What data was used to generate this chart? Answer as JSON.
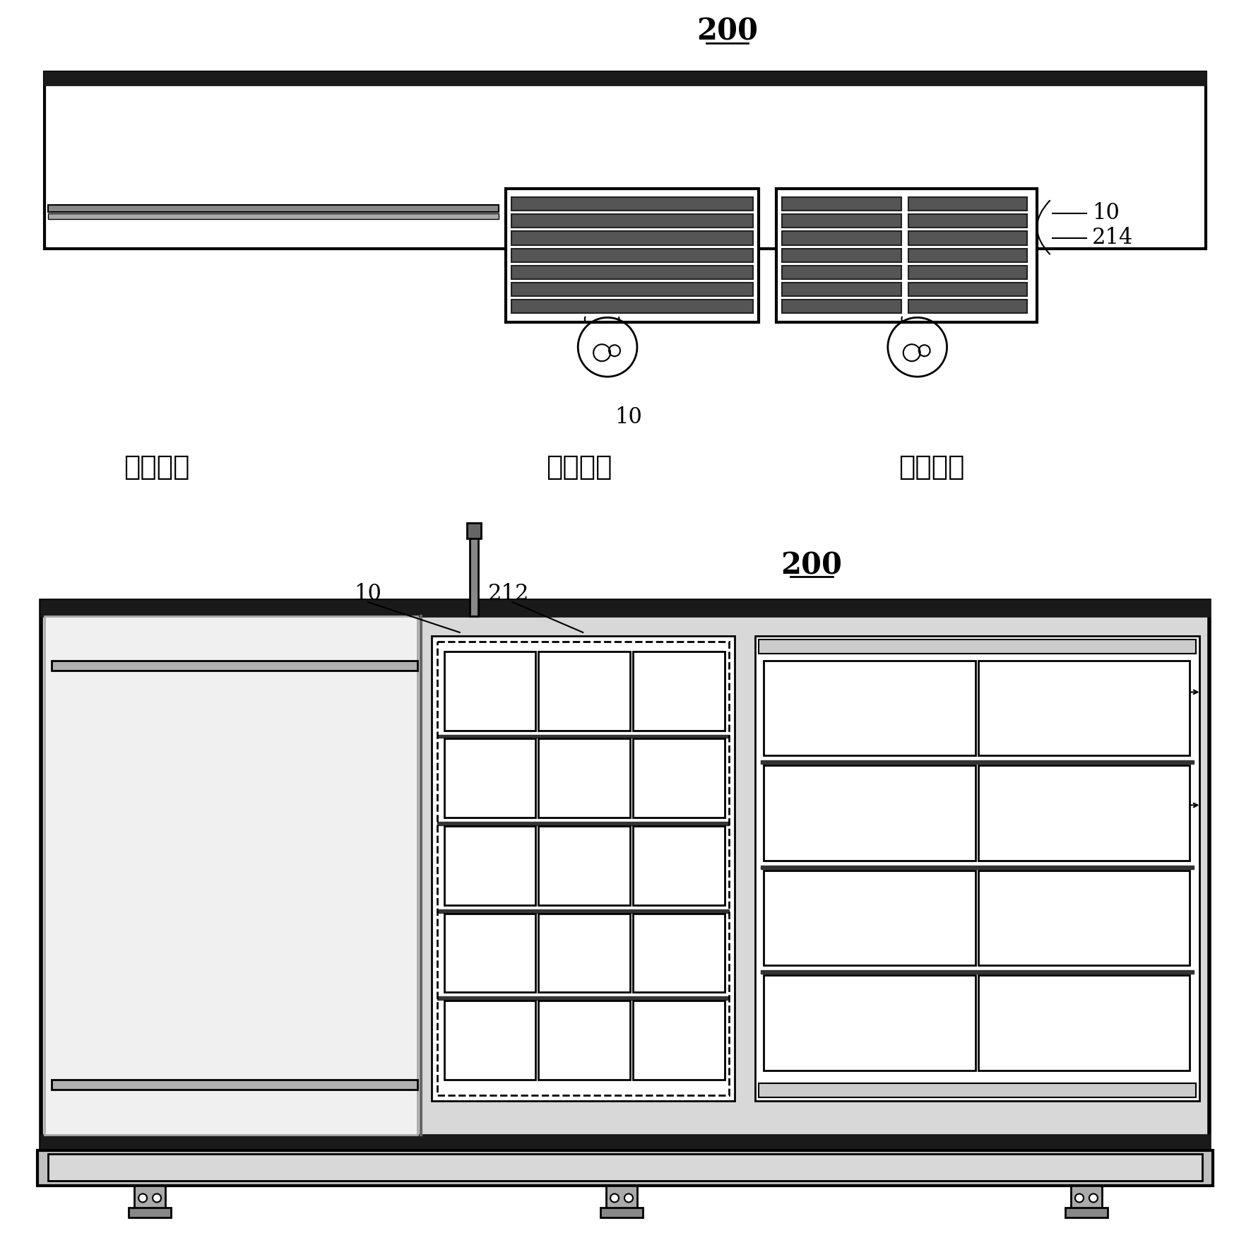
{
  "bg_color": "#ffffff",
  "line_color": "#000000",
  "fig_width": 17.71,
  "fig_height": 17.69,
  "label_200": "200",
  "label_10": "10",
  "label_214": "214",
  "label_212": "212",
  "label_second": "第二位置",
  "label_first": "第一位置",
  "label_third": "第三位置"
}
